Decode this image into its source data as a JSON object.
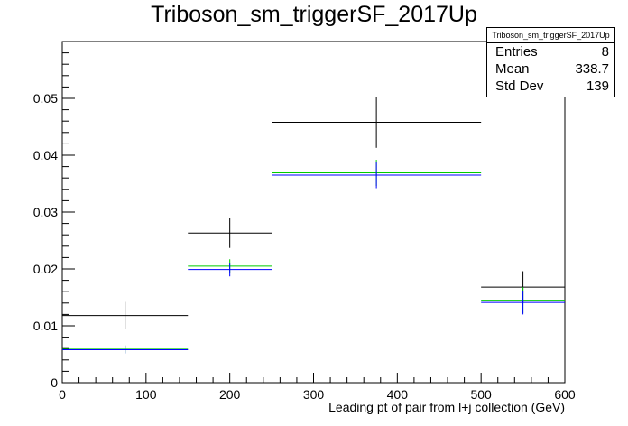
{
  "title": "Triboson_sm_triggerSF_2017Up",
  "stats": {
    "name": "Triboson_sm_triggerSF_2017Up",
    "entries_label": "Entries",
    "entries_value": "8",
    "mean_label": "Mean",
    "mean_value": "338.7",
    "stddev_label": "Std Dev",
    "stddev_value": "139"
  },
  "chart_data": {
    "type": "histogram",
    "title": "Triboson_sm_triggerSF_2017Up",
    "xlabel": "Leading pt of pair from l+j collection (GeV)",
    "ylabel": "",
    "xlim": [
      0,
      600
    ],
    "ylim": [
      0,
      0.06
    ],
    "x_ticks": [
      0,
      100,
      200,
      300,
      400,
      500,
      600
    ],
    "y_ticks": [
      0,
      0.01,
      0.02,
      0.03,
      0.04,
      0.05
    ],
    "y_tick_labels": [
      "0",
      "0.01",
      "0.02",
      "0.03",
      "0.04",
      "0.05"
    ],
    "bin_edges": [
      0,
      150,
      250,
      500,
      600
    ],
    "series": [
      {
        "color": "#000000",
        "values": [
          0.0118,
          0.0263,
          0.0458,
          0.0168
        ],
        "errors": [
          0.0024,
          0.0026,
          0.0045,
          0.0028
        ]
      },
      {
        "color": "#00cc00",
        "values": [
          0.0059,
          0.0205,
          0.0369,
          0.0145
        ],
        "errors": [
          0.0007,
          0.0012,
          0.0023,
          0.0023
        ]
      },
      {
        "color": "#0000ff",
        "values": [
          0.0058,
          0.0199,
          0.0365,
          0.0141
        ],
        "errors": [
          0.0007,
          0.0012,
          0.0023,
          0.0021
        ]
      }
    ],
    "grid": false,
    "legend": "top-right"
  }
}
